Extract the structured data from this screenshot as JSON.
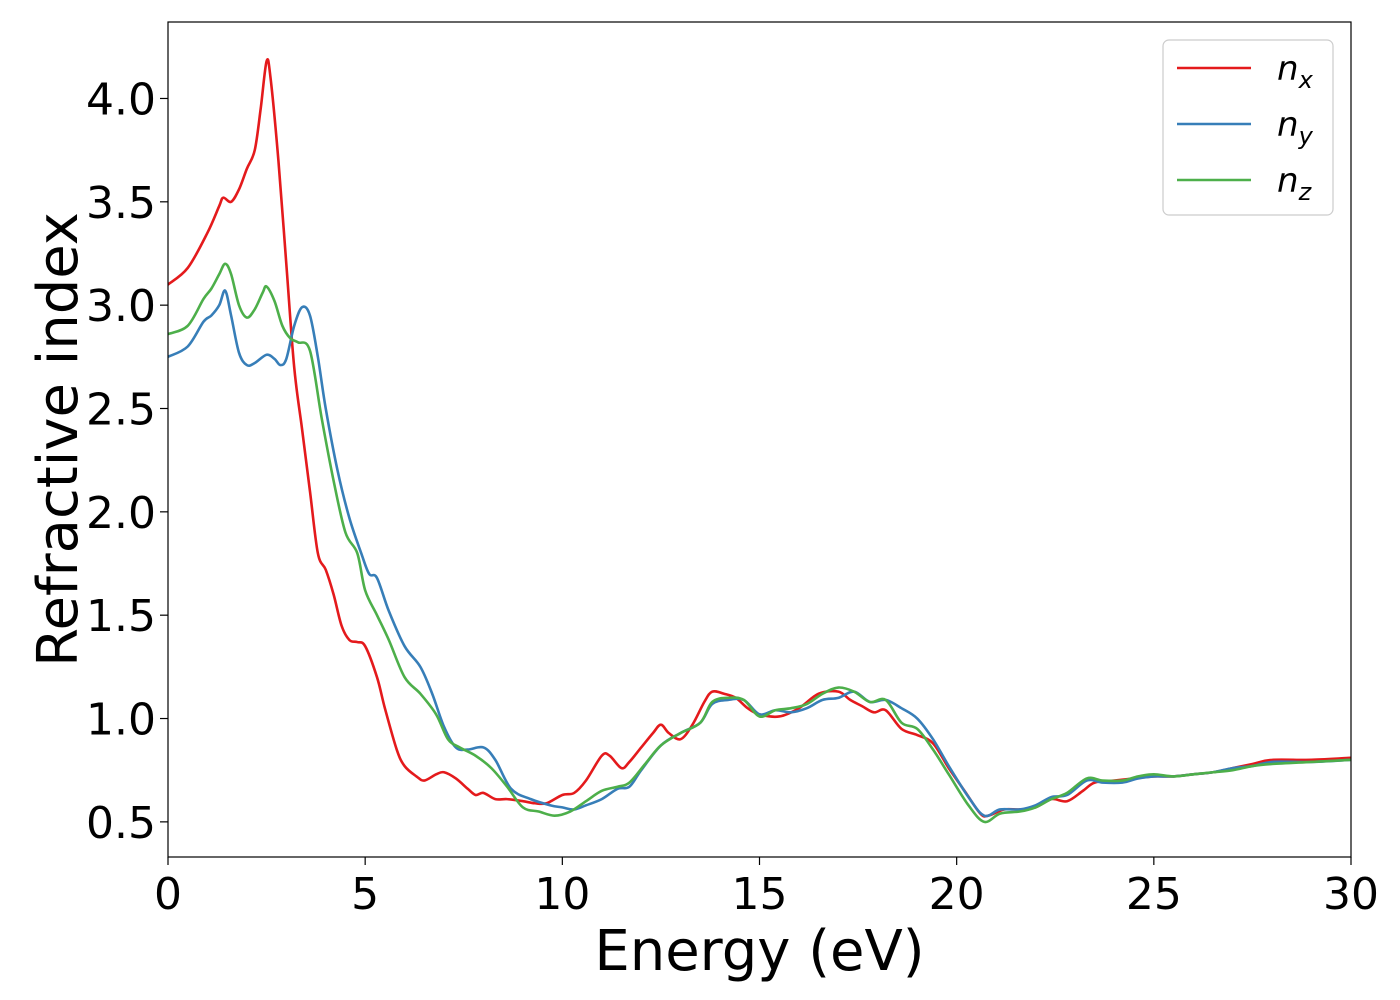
{
  "chart_data": {
    "type": "line",
    "xlabel": "Energy (eV)",
    "ylabel": "Refractive index",
    "xlim": [
      0,
      30
    ],
    "ylim": [
      0.33,
      4.37
    ],
    "xticks": [
      0,
      5,
      10,
      15,
      20,
      25,
      30
    ],
    "xtick_labels": [
      "0",
      "5",
      "10",
      "15",
      "20",
      "25",
      "30"
    ],
    "yticks": [
      0.5,
      1.0,
      1.5,
      2.0,
      2.5,
      3.0,
      3.5,
      4.0
    ],
    "ytick_labels": [
      "0.5",
      "1.0",
      "1.5",
      "2.0",
      "2.5",
      "3.0",
      "3.5",
      "4.0"
    ],
    "grid": false,
    "legend_position": "top-right",
    "series": [
      {
        "name": "n",
        "subscript": "x",
        "color": "#e41a1c",
        "points": [
          [
            0,
            3.1
          ],
          [
            0.5,
            3.18
          ],
          [
            1.0,
            3.35
          ],
          [
            1.3,
            3.48
          ],
          [
            1.4,
            3.52
          ],
          [
            1.6,
            3.5
          ],
          [
            1.8,
            3.56
          ],
          [
            2.0,
            3.66
          ],
          [
            2.2,
            3.75
          ],
          [
            2.35,
            3.95
          ],
          [
            2.5,
            4.18
          ],
          [
            2.6,
            4.1
          ],
          [
            2.8,
            3.7
          ],
          [
            3.0,
            3.2
          ],
          [
            3.2,
            2.7
          ],
          [
            3.4,
            2.4
          ],
          [
            3.6,
            2.1
          ],
          [
            3.8,
            1.8
          ],
          [
            4.0,
            1.72
          ],
          [
            4.2,
            1.6
          ],
          [
            4.4,
            1.45
          ],
          [
            4.6,
            1.38
          ],
          [
            4.8,
            1.37
          ],
          [
            5.0,
            1.35
          ],
          [
            5.3,
            1.2
          ],
          [
            5.5,
            1.05
          ],
          [
            5.8,
            0.85
          ],
          [
            6.0,
            0.77
          ],
          [
            6.3,
            0.72
          ],
          [
            6.5,
            0.7
          ],
          [
            6.8,
            0.73
          ],
          [
            7.0,
            0.74
          ],
          [
            7.3,
            0.71
          ],
          [
            7.6,
            0.66
          ],
          [
            7.8,
            0.63
          ],
          [
            8.0,
            0.64
          ],
          [
            8.3,
            0.61
          ],
          [
            8.6,
            0.61
          ],
          [
            9.0,
            0.6
          ],
          [
            9.3,
            0.59
          ],
          [
            9.6,
            0.59
          ],
          [
            10.0,
            0.63
          ],
          [
            10.3,
            0.64
          ],
          [
            10.6,
            0.7
          ],
          [
            11.0,
            0.82
          ],
          [
            11.2,
            0.82
          ],
          [
            11.5,
            0.76
          ],
          [
            11.7,
            0.79
          ],
          [
            12.0,
            0.86
          ],
          [
            12.3,
            0.93
          ],
          [
            12.5,
            0.97
          ],
          [
            12.7,
            0.93
          ],
          [
            13.0,
            0.9
          ],
          [
            13.3,
            0.97
          ],
          [
            13.6,
            1.08
          ],
          [
            13.8,
            1.13
          ],
          [
            14.1,
            1.12
          ],
          [
            14.4,
            1.1
          ],
          [
            14.7,
            1.05
          ],
          [
            15.0,
            1.02
          ],
          [
            15.5,
            1.01
          ],
          [
            16.0,
            1.05
          ],
          [
            16.5,
            1.12
          ],
          [
            17.0,
            1.13
          ],
          [
            17.3,
            1.09
          ],
          [
            17.6,
            1.06
          ],
          [
            17.9,
            1.03
          ],
          [
            18.2,
            1.04
          ],
          [
            18.6,
            0.95
          ],
          [
            19.0,
            0.92
          ],
          [
            19.4,
            0.88
          ],
          [
            19.8,
            0.76
          ],
          [
            20.2,
            0.65
          ],
          [
            20.6,
            0.54
          ],
          [
            20.8,
            0.53
          ],
          [
            21.2,
            0.56
          ],
          [
            21.6,
            0.56
          ],
          [
            22.0,
            0.57
          ],
          [
            22.4,
            0.61
          ],
          [
            22.8,
            0.6
          ],
          [
            23.2,
            0.65
          ],
          [
            23.5,
            0.69
          ],
          [
            24.0,
            0.7
          ],
          [
            24.5,
            0.71
          ],
          [
            25.0,
            0.72
          ],
          [
            25.5,
            0.72
          ],
          [
            26.0,
            0.73
          ],
          [
            26.5,
            0.74
          ],
          [
            27.0,
            0.76
          ],
          [
            27.5,
            0.78
          ],
          [
            28.0,
            0.8
          ],
          [
            29.0,
            0.8
          ],
          [
            30.0,
            0.81
          ]
        ]
      },
      {
        "name": "n",
        "subscript": "y",
        "color": "#377eb8",
        "points": [
          [
            0,
            2.75
          ],
          [
            0.5,
            2.8
          ],
          [
            0.9,
            2.92
          ],
          [
            1.1,
            2.95
          ],
          [
            1.3,
            3.0
          ],
          [
            1.45,
            3.07
          ],
          [
            1.6,
            2.95
          ],
          [
            1.8,
            2.77
          ],
          [
            2.0,
            2.71
          ],
          [
            2.2,
            2.72
          ],
          [
            2.5,
            2.76
          ],
          [
            2.7,
            2.74
          ],
          [
            2.85,
            2.71
          ],
          [
            3.0,
            2.74
          ],
          [
            3.2,
            2.9
          ],
          [
            3.4,
            2.99
          ],
          [
            3.6,
            2.95
          ],
          [
            3.8,
            2.75
          ],
          [
            4.0,
            2.5
          ],
          [
            4.3,
            2.2
          ],
          [
            4.6,
            1.97
          ],
          [
            4.9,
            1.8
          ],
          [
            5.1,
            1.7
          ],
          [
            5.3,
            1.68
          ],
          [
            5.6,
            1.52
          ],
          [
            6.0,
            1.35
          ],
          [
            6.4,
            1.25
          ],
          [
            6.7,
            1.12
          ],
          [
            7.0,
            0.96
          ],
          [
            7.3,
            0.86
          ],
          [
            7.6,
            0.85
          ],
          [
            8.0,
            0.86
          ],
          [
            8.3,
            0.8
          ],
          [
            8.7,
            0.66
          ],
          [
            9.2,
            0.61
          ],
          [
            9.7,
            0.58
          ],
          [
            10.0,
            0.57
          ],
          [
            10.3,
            0.56
          ],
          [
            10.6,
            0.58
          ],
          [
            11.0,
            0.61
          ],
          [
            11.4,
            0.66
          ],
          [
            11.7,
            0.67
          ],
          [
            12.0,
            0.75
          ],
          [
            12.5,
            0.87
          ],
          [
            13.0,
            0.93
          ],
          [
            13.5,
            0.98
          ],
          [
            13.8,
            1.07
          ],
          [
            14.2,
            1.09
          ],
          [
            14.6,
            1.09
          ],
          [
            15.0,
            1.02
          ],
          [
            15.4,
            1.04
          ],
          [
            15.8,
            1.03
          ],
          [
            16.2,
            1.05
          ],
          [
            16.6,
            1.09
          ],
          [
            17.0,
            1.1
          ],
          [
            17.4,
            1.13
          ],
          [
            17.8,
            1.08
          ],
          [
            18.2,
            1.09
          ],
          [
            18.6,
            1.05
          ],
          [
            19.0,
            1.0
          ],
          [
            19.4,
            0.9
          ],
          [
            19.8,
            0.77
          ],
          [
            20.3,
            0.62
          ],
          [
            20.7,
            0.53
          ],
          [
            21.1,
            0.56
          ],
          [
            21.6,
            0.56
          ],
          [
            22.0,
            0.58
          ],
          [
            22.4,
            0.62
          ],
          [
            22.8,
            0.63
          ],
          [
            23.3,
            0.7
          ],
          [
            23.7,
            0.69
          ],
          [
            24.2,
            0.69
          ],
          [
            24.6,
            0.71
          ],
          [
            25.0,
            0.72
          ],
          [
            25.5,
            0.72
          ],
          [
            26.0,
            0.73
          ],
          [
            26.5,
            0.74
          ],
          [
            27.0,
            0.76
          ],
          [
            27.5,
            0.77
          ],
          [
            28.0,
            0.79
          ],
          [
            29.0,
            0.79
          ],
          [
            30.0,
            0.8
          ]
        ]
      },
      {
        "name": "n",
        "subscript": "z",
        "color": "#4daf4a",
        "points": [
          [
            0,
            2.86
          ],
          [
            0.5,
            2.9
          ],
          [
            0.9,
            3.03
          ],
          [
            1.1,
            3.08
          ],
          [
            1.3,
            3.15
          ],
          [
            1.45,
            3.2
          ],
          [
            1.6,
            3.15
          ],
          [
            1.8,
            3.0
          ],
          [
            2.0,
            2.94
          ],
          [
            2.2,
            2.98
          ],
          [
            2.4,
            3.06
          ],
          [
            2.5,
            3.09
          ],
          [
            2.7,
            3.02
          ],
          [
            2.9,
            2.9
          ],
          [
            3.1,
            2.84
          ],
          [
            3.3,
            2.82
          ],
          [
            3.6,
            2.78
          ],
          [
            3.9,
            2.45
          ],
          [
            4.2,
            2.15
          ],
          [
            4.5,
            1.9
          ],
          [
            4.8,
            1.8
          ],
          [
            5.0,
            1.62
          ],
          [
            5.3,
            1.5
          ],
          [
            5.6,
            1.38
          ],
          [
            6.0,
            1.2
          ],
          [
            6.4,
            1.12
          ],
          [
            6.8,
            1.02
          ],
          [
            7.1,
            0.9
          ],
          [
            7.4,
            0.86
          ],
          [
            7.8,
            0.82
          ],
          [
            8.2,
            0.76
          ],
          [
            8.6,
            0.67
          ],
          [
            9.0,
            0.57
          ],
          [
            9.4,
            0.55
          ],
          [
            9.8,
            0.53
          ],
          [
            10.2,
            0.55
          ],
          [
            10.6,
            0.6
          ],
          [
            11.0,
            0.65
          ],
          [
            11.4,
            0.67
          ],
          [
            11.7,
            0.69
          ],
          [
            12.1,
            0.78
          ],
          [
            12.5,
            0.87
          ],
          [
            13.0,
            0.93
          ],
          [
            13.5,
            0.98
          ],
          [
            13.8,
            1.08
          ],
          [
            14.2,
            1.1
          ],
          [
            14.6,
            1.09
          ],
          [
            15.0,
            1.01
          ],
          [
            15.4,
            1.04
          ],
          [
            15.8,
            1.05
          ],
          [
            16.2,
            1.07
          ],
          [
            16.6,
            1.12
          ],
          [
            17.0,
            1.15
          ],
          [
            17.4,
            1.13
          ],
          [
            17.8,
            1.08
          ],
          [
            18.2,
            1.09
          ],
          [
            18.6,
            0.98
          ],
          [
            19.0,
            0.95
          ],
          [
            19.4,
            0.85
          ],
          [
            19.8,
            0.73
          ],
          [
            20.3,
            0.58
          ],
          [
            20.7,
            0.5
          ],
          [
            21.1,
            0.54
          ],
          [
            21.6,
            0.55
          ],
          [
            22.0,
            0.57
          ],
          [
            22.4,
            0.61
          ],
          [
            22.8,
            0.64
          ],
          [
            23.3,
            0.71
          ],
          [
            23.7,
            0.7
          ],
          [
            24.2,
            0.7
          ],
          [
            24.6,
            0.72
          ],
          [
            25.0,
            0.73
          ],
          [
            25.5,
            0.72
          ],
          [
            26.0,
            0.73
          ],
          [
            26.5,
            0.74
          ],
          [
            27.0,
            0.75
          ],
          [
            27.5,
            0.77
          ],
          [
            28.0,
            0.78
          ],
          [
            29.0,
            0.79
          ],
          [
            30.0,
            0.8
          ]
        ]
      }
    ]
  }
}
